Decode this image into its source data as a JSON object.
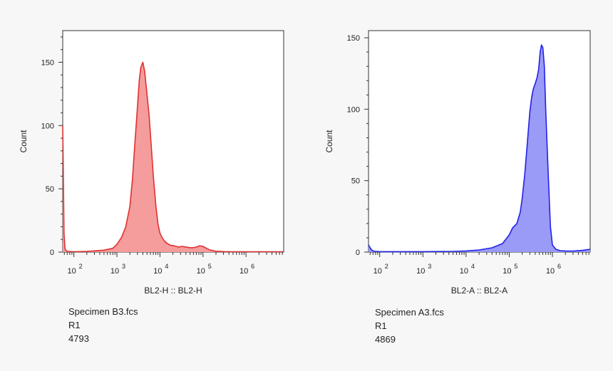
{
  "chart_data": [
    {
      "type": "area",
      "file": "Specimen B3.fcs",
      "gate": "R1",
      "events": "4793",
      "xlabel": "BL2-H :: BL2-H",
      "ylabel": "Count",
      "x_scale": "log",
      "xlim": [
        55,
        7500000
      ],
      "ylim": [
        0,
        175
      ],
      "y_ticks": [
        0,
        50,
        100,
        150
      ],
      "x_ticks": [
        {
          "value": 100,
          "base": "10",
          "exp": "2"
        },
        {
          "value": 1000,
          "base": "10",
          "exp": "3"
        },
        {
          "value": 10000,
          "base": "10",
          "exp": "4"
        },
        {
          "value": 100000,
          "base": "10",
          "exp": "5"
        },
        {
          "value": 1000000,
          "base": "10",
          "exp": "6"
        }
      ],
      "color": "#e03030",
      "fill": "#f59c9c",
      "series": [
        {
          "x": [
            55,
            57,
            59,
            62,
            66,
            72,
            100,
            200,
            500,
            800,
            1000,
            1300,
            1600,
            2000,
            2300,
            2600,
            3000,
            3300,
            3600,
            4000,
            4400,
            5000,
            5600,
            6300,
            7100,
            8000,
            9000,
            10000,
            11000,
            12500,
            14500,
            17000,
            21000,
            27000,
            33000,
            40000,
            50000,
            60000,
            70000,
            85000,
            100000,
            120000,
            150000,
            200000,
            300000,
            500000,
            1000000,
            3000000,
            7500000
          ],
          "y": [
            100,
            60,
            15,
            3,
            1,
            0.5,
            0.3,
            0.5,
            1.5,
            3,
            6,
            12,
            20,
            36,
            58,
            85,
            115,
            136,
            146,
            150,
            143,
            125,
            108,
            83,
            58,
            37,
            22,
            15,
            12,
            9,
            7,
            5.5,
            5,
            4,
            4.5,
            4,
            3.5,
            3.5,
            4,
            5,
            4.5,
            3,
            1.5,
            0.7,
            0.4,
            0.3,
            0.3,
            0.3,
            0.3
          ]
        }
      ]
    },
    {
      "type": "area",
      "file": "Specimen A3.fcs",
      "gate": "R1",
      "events": "4869",
      "xlabel": "BL2-A :: BL2-A",
      "ylabel": "Count",
      "x_scale": "log",
      "xlim": [
        55,
        7500000
      ],
      "ylim": [
        0,
        155
      ],
      "y_ticks": [
        0,
        50,
        100,
        150
      ],
      "x_ticks": [
        {
          "value": 100,
          "base": "10",
          "exp": "2"
        },
        {
          "value": 1000,
          "base": "10",
          "exp": "3"
        },
        {
          "value": 10000,
          "base": "10",
          "exp": "4"
        },
        {
          "value": 100000,
          "base": "10",
          "exp": "5"
        },
        {
          "value": 1000000,
          "base": "10",
          "exp": "6"
        }
      ],
      "color": "#2222e8",
      "fill": "#9a9af7",
      "series": [
        {
          "x": [
            55,
            60,
            65,
            70,
            80,
            100,
            200,
            1000,
            5000,
            10000,
            20000,
            40000,
            70000,
            100000,
            120000,
            150000,
            180000,
            200000,
            230000,
            260000,
            300000,
            330000,
            360000,
            400000,
            440000,
            480000,
            520000,
            560000,
            600000,
            650000,
            700000,
            800000,
            900000,
            1000000,
            1200000,
            1500000,
            2000000,
            3000000,
            5000000,
            7500000
          ],
          "y": [
            5,
            3,
            1.5,
            0.8,
            0.5,
            0.3,
            0.3,
            0.3,
            0.5,
            0.8,
            1.5,
            3,
            6,
            12,
            17,
            20,
            28,
            38,
            55,
            75,
            98,
            108,
            114,
            118,
            122,
            128,
            140,
            145,
            143,
            130,
            100,
            55,
            18,
            5,
            2,
            1,
            0.8,
            0.7,
            1.2,
            2
          ]
        }
      ]
    }
  ]
}
